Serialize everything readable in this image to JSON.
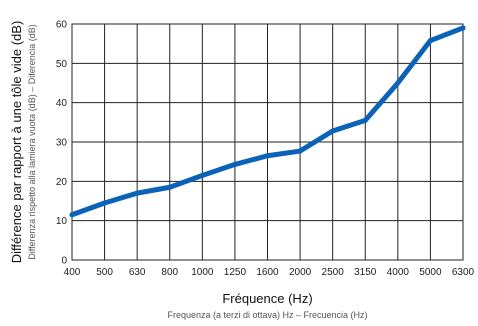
{
  "chart_data": {
    "type": "line",
    "title": "",
    "categories": [
      "400",
      "500",
      "630",
      "800",
      "1000",
      "1250",
      "1600",
      "2000",
      "2500",
      "3150",
      "4000",
      "5000",
      "6300"
    ],
    "series": [
      {
        "values": [
          11.5,
          14.5,
          17,
          18.5,
          21.5,
          24.3,
          26.5,
          27.7,
          32.8,
          35.5,
          45,
          55.8,
          59
        ]
      }
    ],
    "xlabel": "Fréquence (Hz)",
    "xlabel_sub": "Frequenza (a terzi di ottava) Hz – Frecuencia (Hz)",
    "ylabel": "Différence par rapport à une tôle vide (dB)",
    "ylabel_sub": "Differenza rispetto alla lamiera vuota (dB) – Diferencia (dB)",
    "ylim": [
      0,
      60
    ],
    "yticks": [
      "0",
      "10",
      "20",
      "30",
      "40",
      "50",
      "60"
    ],
    "grid": true,
    "colors": {
      "line": "#0a63b6"
    }
  }
}
